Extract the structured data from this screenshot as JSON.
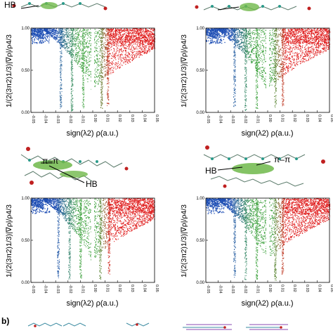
{
  "chart_data": [
    {
      "type": "scatter",
      "panel": "top-left",
      "ylabel": "1/(2(3π2)1/3)|∇ρ|/ρ4/3",
      "xlabel": "sign(λ2) ρ(a.u.)",
      "xlim": [
        -0.05,
        0.05
      ],
      "ylim": [
        0,
        1.0
      ],
      "xticks": [
        "-0.05",
        "-0.04",
        "-0.03",
        "-0.02",
        "-0.01",
        "0.00",
        "0.01",
        "0.02",
        "0.03",
        "0.04",
        "0.05"
      ],
      "yticks": [
        "0.00",
        "0.50",
        "1.00"
      ],
      "spikes": [
        {
          "x": -0.026,
          "ymin": 0.05,
          "color": "#4a7fb8"
        },
        {
          "x": -0.017,
          "ymin": 0.02,
          "color": "#3f9f62"
        },
        {
          "x": -0.008,
          "ymin": 0.05,
          "color": "#4cae4a"
        },
        {
          "x": 0.0,
          "ymin": 0.0,
          "color": "#ffffff"
        },
        {
          "x": 0.007,
          "ymin": 0.05,
          "color": "#c44a3a"
        },
        {
          "x": 0.012,
          "ymin": 0.08,
          "color": "#d12a2a"
        }
      ]
    },
    {
      "type": "scatter",
      "panel": "top-right",
      "ylabel": "1/(2(3π2)1/3)|∇ρ|/ρ4/3",
      "xlabel": "sign(λ2) ρ(a.u.)",
      "xlim": [
        -0.05,
        0.05
      ],
      "ylim": [
        0,
        1.0
      ],
      "xticks": [
        "-0.05",
        "-0.04",
        "-0.03",
        "-0.02",
        "-0.01",
        "0.00",
        "0.01",
        "0.02",
        "0.03",
        "0.04",
        "0.05"
      ],
      "yticks": [
        "0.00",
        "0.50",
        "1.00"
      ],
      "spikes": [
        {
          "x": -0.027,
          "ymin": 0.05,
          "color": "#4a7fb8"
        },
        {
          "x": -0.018,
          "ymin": 0.02,
          "color": "#3f9f62"
        },
        {
          "x": -0.009,
          "ymin": 0.05,
          "color": "#4cae4a"
        },
        {
          "x": 0.0,
          "ymin": 0.0,
          "color": "#ffffff"
        },
        {
          "x": 0.006,
          "ymin": 0.05,
          "color": "#c44a3a"
        },
        {
          "x": 0.012,
          "ymin": 0.08,
          "color": "#d12a2a"
        }
      ]
    },
    {
      "type": "scatter",
      "panel": "bottom-left",
      "ylabel": "1/(2(3π2)1/3)|∇ρ|/ρ4/3",
      "xlabel": "sign(λ2) ρ(a.u.)",
      "xlim": [
        -0.05,
        0.05
      ],
      "ylim": [
        0,
        1.0
      ],
      "xticks": [
        "-0.05",
        "-0.04",
        "-0.03",
        "-0.02",
        "-0.01",
        "0.00",
        "0.01",
        "0.02",
        "0.03",
        "0.04",
        "0.05"
      ],
      "yticks": [
        "0.00",
        "0.50",
        "1.00"
      ],
      "spikes": [
        {
          "x": -0.028,
          "ymin": 0.05,
          "color": "#4a7fb8"
        },
        {
          "x": -0.019,
          "ymin": 0.03,
          "color": "#3f9f62"
        },
        {
          "x": -0.01,
          "ymin": 0.05,
          "color": "#4cae4a"
        },
        {
          "x": 0.0,
          "ymin": 0.0,
          "color": "#ffffff"
        },
        {
          "x": 0.006,
          "ymin": 0.04,
          "color": "#c44a3a"
        },
        {
          "x": 0.013,
          "ymin": 0.1,
          "color": "#d12a2a"
        }
      ]
    },
    {
      "type": "scatter",
      "panel": "bottom-right",
      "ylabel": "1/(2(3π2)1/3)|∇ρ|/ρ4/3",
      "xlabel": "sign(λ2) ρ(a.u.)",
      "xlim": [
        -0.05,
        0.05
      ],
      "ylim": [
        0,
        1.0
      ],
      "xticks": [
        "-0.05",
        "-0.04",
        "-0.03",
        "-0.02",
        "-0.01",
        "0.00",
        "0.01",
        "0.02",
        "0.03",
        "0.04",
        "0.05"
      ],
      "yticks": [
        "0.00",
        "0.50",
        "1.00"
      ],
      "spikes": [
        {
          "x": -0.027,
          "ymin": 0.05,
          "color": "#4a7fb8"
        },
        {
          "x": -0.018,
          "ymin": 0.03,
          "color": "#3f9f62"
        },
        {
          "x": -0.009,
          "ymin": 0.04,
          "color": "#4cae4a"
        },
        {
          "x": 0.0,
          "ymin": 0.0,
          "color": "#ffffff"
        },
        {
          "x": 0.006,
          "ymin": 0.03,
          "color": "#c44a3a"
        },
        {
          "x": 0.012,
          "ymin": 0.09,
          "color": "#d12a2a"
        }
      ]
    }
  ],
  "annotations": {
    "hb_top": "HB",
    "pi_pi_left": "π–π",
    "hb_left": "HB",
    "pi_pi_right": "π–π",
    "hb_right": "HB",
    "panel_b": "b)"
  },
  "colors": {
    "blue": "#1f4fb5",
    "green": "#3aa03a",
    "red": "#e02020"
  }
}
